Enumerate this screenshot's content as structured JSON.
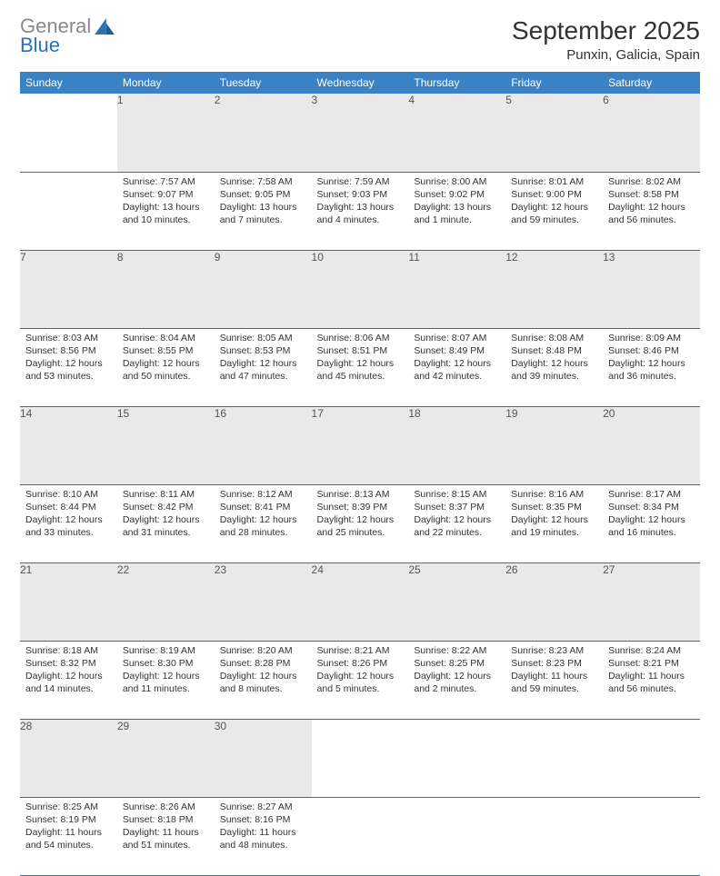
{
  "logo": {
    "text1": "General",
    "text2": "Blue"
  },
  "title": "September 2025",
  "location": "Punxin, Galicia, Spain",
  "colors": {
    "header_bg": "#3b82c4",
    "header_text": "#ffffff",
    "daynum_bg": "#e9e9e9",
    "border": "#2b71b8",
    "logo_gray": "#8a8a8a",
    "logo_blue": "#2b71b8"
  },
  "fonts": {
    "title_size": 28,
    "location_size": 15,
    "header_size": 12,
    "cell_size": 10.5
  },
  "weekdays": [
    "Sunday",
    "Monday",
    "Tuesday",
    "Wednesday",
    "Thursday",
    "Friday",
    "Saturday"
  ],
  "weeks": [
    [
      {
        "day": "",
        "sunrise": "",
        "sunset": "",
        "daylight": ""
      },
      {
        "day": "1",
        "sunrise": "7:57 AM",
        "sunset": "9:07 PM",
        "daylight": "13 hours and 10 minutes."
      },
      {
        "day": "2",
        "sunrise": "7:58 AM",
        "sunset": "9:05 PM",
        "daylight": "13 hours and 7 minutes."
      },
      {
        "day": "3",
        "sunrise": "7:59 AM",
        "sunset": "9:03 PM",
        "daylight": "13 hours and 4 minutes."
      },
      {
        "day": "4",
        "sunrise": "8:00 AM",
        "sunset": "9:02 PM",
        "daylight": "13 hours and 1 minute."
      },
      {
        "day": "5",
        "sunrise": "8:01 AM",
        "sunset": "9:00 PM",
        "daylight": "12 hours and 59 minutes."
      },
      {
        "day": "6",
        "sunrise": "8:02 AM",
        "sunset": "8:58 PM",
        "daylight": "12 hours and 56 minutes."
      }
    ],
    [
      {
        "day": "7",
        "sunrise": "8:03 AM",
        "sunset": "8:56 PM",
        "daylight": "12 hours and 53 minutes."
      },
      {
        "day": "8",
        "sunrise": "8:04 AM",
        "sunset": "8:55 PM",
        "daylight": "12 hours and 50 minutes."
      },
      {
        "day": "9",
        "sunrise": "8:05 AM",
        "sunset": "8:53 PM",
        "daylight": "12 hours and 47 minutes."
      },
      {
        "day": "10",
        "sunrise": "8:06 AM",
        "sunset": "8:51 PM",
        "daylight": "12 hours and 45 minutes."
      },
      {
        "day": "11",
        "sunrise": "8:07 AM",
        "sunset": "8:49 PM",
        "daylight": "12 hours and 42 minutes."
      },
      {
        "day": "12",
        "sunrise": "8:08 AM",
        "sunset": "8:48 PM",
        "daylight": "12 hours and 39 minutes."
      },
      {
        "day": "13",
        "sunrise": "8:09 AM",
        "sunset": "8:46 PM",
        "daylight": "12 hours and 36 minutes."
      }
    ],
    [
      {
        "day": "14",
        "sunrise": "8:10 AM",
        "sunset": "8:44 PM",
        "daylight": "12 hours and 33 minutes."
      },
      {
        "day": "15",
        "sunrise": "8:11 AM",
        "sunset": "8:42 PM",
        "daylight": "12 hours and 31 minutes."
      },
      {
        "day": "16",
        "sunrise": "8:12 AM",
        "sunset": "8:41 PM",
        "daylight": "12 hours and 28 minutes."
      },
      {
        "day": "17",
        "sunrise": "8:13 AM",
        "sunset": "8:39 PM",
        "daylight": "12 hours and 25 minutes."
      },
      {
        "day": "18",
        "sunrise": "8:15 AM",
        "sunset": "8:37 PM",
        "daylight": "12 hours and 22 minutes."
      },
      {
        "day": "19",
        "sunrise": "8:16 AM",
        "sunset": "8:35 PM",
        "daylight": "12 hours and 19 minutes."
      },
      {
        "day": "20",
        "sunrise": "8:17 AM",
        "sunset": "8:34 PM",
        "daylight": "12 hours and 16 minutes."
      }
    ],
    [
      {
        "day": "21",
        "sunrise": "8:18 AM",
        "sunset": "8:32 PM",
        "daylight": "12 hours and 14 minutes."
      },
      {
        "day": "22",
        "sunrise": "8:19 AM",
        "sunset": "8:30 PM",
        "daylight": "12 hours and 11 minutes."
      },
      {
        "day": "23",
        "sunrise": "8:20 AM",
        "sunset": "8:28 PM",
        "daylight": "12 hours and 8 minutes."
      },
      {
        "day": "24",
        "sunrise": "8:21 AM",
        "sunset": "8:26 PM",
        "daylight": "12 hours and 5 minutes."
      },
      {
        "day": "25",
        "sunrise": "8:22 AM",
        "sunset": "8:25 PM",
        "daylight": "12 hours and 2 minutes."
      },
      {
        "day": "26",
        "sunrise": "8:23 AM",
        "sunset": "8:23 PM",
        "daylight": "11 hours and 59 minutes."
      },
      {
        "day": "27",
        "sunrise": "8:24 AM",
        "sunset": "8:21 PM",
        "daylight": "11 hours and 56 minutes."
      }
    ],
    [
      {
        "day": "28",
        "sunrise": "8:25 AM",
        "sunset": "8:19 PM",
        "daylight": "11 hours and 54 minutes."
      },
      {
        "day": "29",
        "sunrise": "8:26 AM",
        "sunset": "8:18 PM",
        "daylight": "11 hours and 51 minutes."
      },
      {
        "day": "30",
        "sunrise": "8:27 AM",
        "sunset": "8:16 PM",
        "daylight": "11 hours and 48 minutes."
      },
      {
        "day": "",
        "sunrise": "",
        "sunset": "",
        "daylight": ""
      },
      {
        "day": "",
        "sunrise": "",
        "sunset": "",
        "daylight": ""
      },
      {
        "day": "",
        "sunrise": "",
        "sunset": "",
        "daylight": ""
      },
      {
        "day": "",
        "sunrise": "",
        "sunset": "",
        "daylight": ""
      }
    ]
  ]
}
